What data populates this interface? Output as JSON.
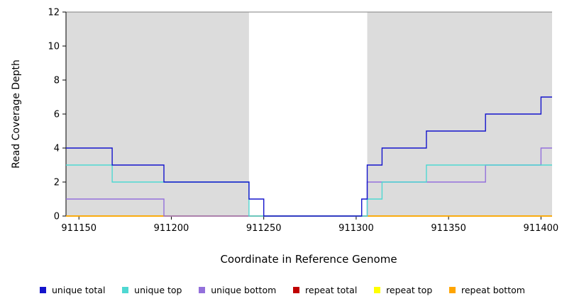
{
  "chart_data": {
    "type": "line",
    "style": "step",
    "title": "",
    "xlabel": "Coordinate in Reference Genome",
    "ylabel": "Read Coverage Depth",
    "xlim": [
      911143,
      911406
    ],
    "ylim": [
      0,
      12
    ],
    "x_ticks": [
      911150,
      911200,
      911250,
      911300,
      911350,
      911400
    ],
    "y_ticks": [
      0,
      2,
      4,
      6,
      8,
      10,
      12
    ],
    "grid": false,
    "legend_position": "bottom",
    "shaded_regions": [
      {
        "x0": 911143,
        "x1": 911242,
        "color": "#dcdcdc"
      },
      {
        "x0": 911306,
        "x1": 911406,
        "color": "#dcdcdc"
      }
    ],
    "series": [
      {
        "name": "unique total",
        "color": "#1414cc",
        "points": [
          [
            911143,
            4
          ],
          [
            911168,
            3
          ],
          [
            911196,
            2
          ],
          [
            911242,
            1
          ],
          [
            911250,
            0
          ],
          [
            911303,
            1
          ],
          [
            911306,
            3
          ],
          [
            911314,
            4
          ],
          [
            911338,
            5
          ],
          [
            911370,
            6
          ],
          [
            911400,
            7
          ],
          [
            911406,
            7
          ]
        ]
      },
      {
        "name": "unique top",
        "color": "#4fd8d2",
        "points": [
          [
            911143,
            3
          ],
          [
            911168,
            2
          ],
          [
            911242,
            0
          ],
          [
            911306,
            1
          ],
          [
            911314,
            2
          ],
          [
            911338,
            3
          ],
          [
            911406,
            3
          ]
        ]
      },
      {
        "name": "unique bottom",
        "color": "#9370db",
        "points": [
          [
            911143,
            1
          ],
          [
            911196,
            0
          ],
          [
            911306,
            2
          ],
          [
            911370,
            3
          ],
          [
            911400,
            4
          ],
          [
            911406,
            4
          ]
        ]
      },
      {
        "name": "repeat total",
        "color": "#c00000",
        "points": [
          [
            911143,
            0
          ],
          [
            911406,
            0
          ]
        ]
      },
      {
        "name": "repeat top",
        "color": "#ffff00",
        "points": [
          [
            911143,
            0
          ],
          [
            911406,
            0
          ]
        ]
      },
      {
        "name": "repeat bottom",
        "color": "#ffa500",
        "points": [
          [
            911143,
            0
          ],
          [
            911406,
            0
          ]
        ]
      }
    ],
    "draw_order": [
      3,
      4,
      5,
      2,
      1,
      0
    ]
  },
  "legend": {
    "items": [
      {
        "label": "unique total",
        "color": "#1414cc"
      },
      {
        "label": "unique top",
        "color": "#4fd8d2"
      },
      {
        "label": "unique bottom",
        "color": "#9370db"
      },
      {
        "label": "repeat total",
        "color": "#c00000"
      },
      {
        "label": "repeat top",
        "color": "#ffff00"
      },
      {
        "label": "repeat bottom",
        "color": "#ffa500"
      }
    ]
  }
}
